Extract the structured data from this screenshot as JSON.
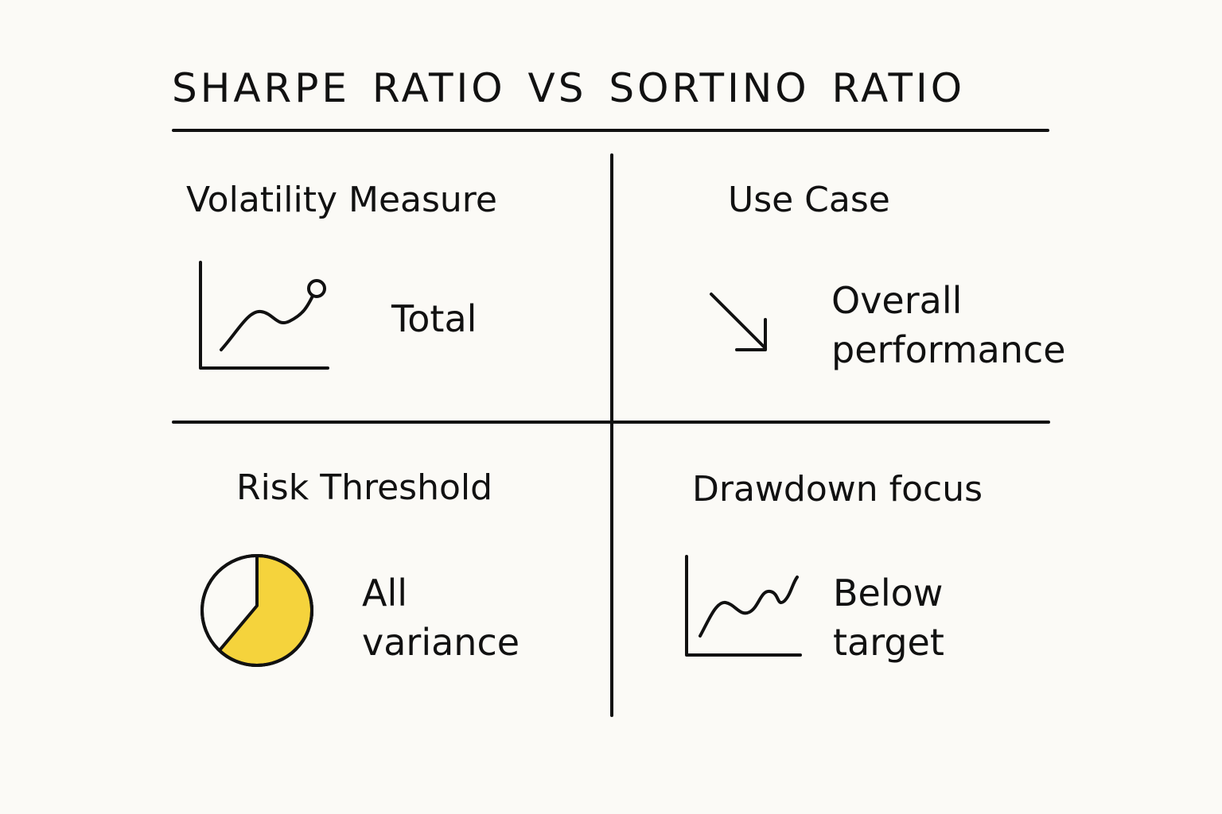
{
  "title": "SHARPE RATIO VS  SORTINO RATIO",
  "colors": {
    "background": "#fbfaf6",
    "ink": "#111111",
    "accent_yellow": "#f5d33c"
  },
  "cells": {
    "volatility": {
      "heading": "Volatility Measure",
      "icon": "line-chart-up-icon",
      "value": "Total"
    },
    "use_case": {
      "heading": "Use Case",
      "icon": "arrow-down-right-icon",
      "value_line1": "Overall",
      "value_line2": "performance"
    },
    "risk_threshold": {
      "heading": "Risk Threshold",
      "icon": "pie-chart-icon",
      "pie_fill_fraction": 0.62,
      "value_line1": "All",
      "value_line2": "variance"
    },
    "drawdown": {
      "heading": "Drawdown focus",
      "icon": "wavy-line-chart-icon",
      "value_line1": "Below",
      "value_line2": "target"
    }
  }
}
